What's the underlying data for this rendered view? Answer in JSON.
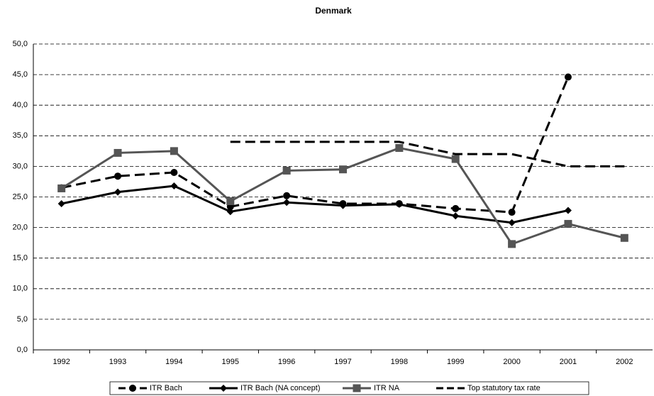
{
  "chart_data": {
    "type": "line",
    "title": "Denmark",
    "categories": [
      "1992",
      "1993",
      "1994",
      "1995",
      "1996",
      "1997",
      "1998",
      "1999",
      "2000",
      "2001",
      "2002"
    ],
    "series": [
      {
        "name": "ITR Bach",
        "color": "#000000",
        "dash": true,
        "marker": "circle",
        "values": [
          26.5,
          28.4,
          29.0,
          23.4,
          25.2,
          23.9,
          23.9,
          23.1,
          22.5,
          44.6,
          null
        ]
      },
      {
        "name": "ITR Bach (NA concept)",
        "color": "#000000",
        "dash": false,
        "marker": "diamond",
        "values": [
          23.9,
          25.8,
          26.8,
          22.6,
          24.1,
          23.6,
          23.8,
          21.9,
          20.8,
          22.8,
          null
        ]
      },
      {
        "name": "ITR NA",
        "color": "#555555",
        "dash": false,
        "marker": "square",
        "values": [
          26.4,
          32.2,
          32.5,
          24.3,
          29.3,
          29.5,
          33.0,
          31.2,
          17.3,
          20.6,
          18.3
        ]
      },
      {
        "name": "Top statutory tax rate",
        "color": "#000000",
        "dash": true,
        "marker": "none",
        "values": [
          null,
          null,
          null,
          34.0,
          34.0,
          34.0,
          34.0,
          32.0,
          32.0,
          30.0,
          30.0
        ]
      }
    ],
    "ylim": [
      0,
      50
    ],
    "yticks": [
      {
        "value": 0,
        "label": "0,0"
      },
      {
        "value": 5,
        "label": "5,0"
      },
      {
        "value": 10,
        "label": "10,0"
      },
      {
        "value": 15,
        "label": "15,0"
      },
      {
        "value": 20,
        "label": "20,0"
      },
      {
        "value": 25,
        "label": "25,0"
      },
      {
        "value": 30,
        "label": "30,0"
      },
      {
        "value": 35,
        "label": "35,0"
      },
      {
        "value": 40,
        "label": "40,0"
      },
      {
        "value": 45,
        "label": "45,0"
      },
      {
        "value": 50,
        "label": "50,0"
      }
    ],
    "grid": true,
    "legend": "bottom"
  }
}
